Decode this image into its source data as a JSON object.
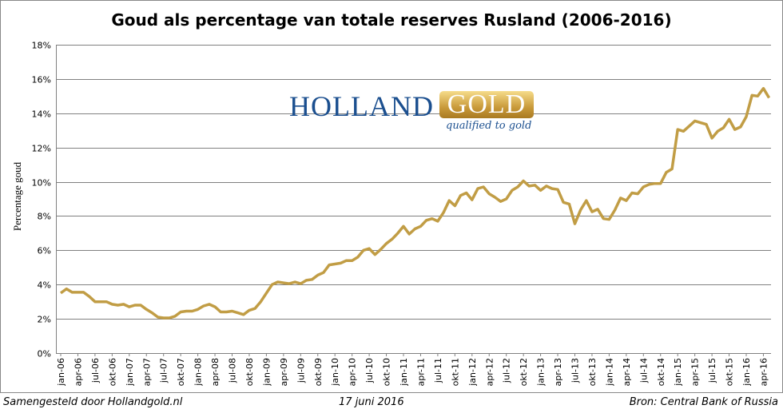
{
  "footer": {
    "left": "Samengesteld door Hollandgold.nl",
    "center": "17 juni 2016",
    "right": "Bron: Central Bank of Russia"
  },
  "logo": {
    "word1": "HOLLAND",
    "word2": "GOLD",
    "tagline": "qualified to gold"
  },
  "colors": {
    "line": "#c19d45",
    "grid": "#808080",
    "logo_blue": "#1b4f8f"
  },
  "chart_data": {
    "type": "line",
    "title": "Goud als percentage van totale reserves Rusland (2006-2016)",
    "xlabel": "",
    "ylabel": "Percentage goud",
    "ylim": [
      0,
      18
    ],
    "yticks": [
      0,
      2,
      4,
      6,
      8,
      10,
      12,
      14,
      16,
      18
    ],
    "ytick_labels": [
      "0%",
      "2%",
      "4%",
      "6%",
      "8%",
      "10%",
      "12%",
      "14%",
      "16%",
      "18%"
    ],
    "xtick_labels": [
      "jan-06",
      "apr-06",
      "jul-06",
      "okt-06",
      "jan-07",
      "apr-07",
      "jul-07",
      "okt-07",
      "jan-08",
      "apr-08",
      "jul-08",
      "okt-08",
      "jan-09",
      "apr-09",
      "jul-09",
      "okt-09",
      "jan-10",
      "apr-10",
      "jul-10",
      "okt-10",
      "jan-11",
      "apr-11",
      "jul-11",
      "okt-11",
      "jan-12",
      "apr-12",
      "jul-12",
      "okt-12",
      "jan-13",
      "apr-13",
      "jul-13",
      "okt-13",
      "jan-14",
      "apr-14",
      "jul-14",
      "okt-14",
      "jan-15",
      "apr-15",
      "jul-15",
      "okt-15",
      "jan-16",
      "apr-16"
    ],
    "grid": true,
    "series": [
      {
        "name": "Percentage goud",
        "start": "jan-06",
        "frequency": "monthly",
        "values": [
          3.5,
          3.75,
          3.55,
          3.55,
          3.55,
          3.3,
          3.0,
          3.0,
          3.0,
          2.85,
          2.8,
          2.85,
          2.7,
          2.8,
          2.8,
          2.55,
          2.35,
          2.1,
          2.05,
          2.05,
          2.15,
          2.4,
          2.45,
          2.45,
          2.55,
          2.75,
          2.85,
          2.7,
          2.4,
          2.4,
          2.45,
          2.35,
          2.25,
          2.5,
          2.6,
          3.0,
          3.5,
          4.0,
          4.15,
          4.1,
          4.05,
          4.15,
          4.05,
          4.25,
          4.3,
          4.55,
          4.7,
          5.15,
          5.2,
          5.25,
          5.4,
          5.4,
          5.6,
          6.0,
          6.1,
          5.75,
          6.05,
          6.4,
          6.65,
          7.0,
          7.4,
          6.95,
          7.25,
          7.4,
          7.75,
          7.85,
          7.7,
          8.2,
          8.9,
          8.6,
          9.2,
          9.35,
          8.95,
          9.6,
          9.7,
          9.3,
          9.1,
          8.85,
          9.0,
          9.5,
          9.7,
          10.05,
          9.75,
          9.8,
          9.5,
          9.75,
          9.6,
          9.55,
          8.8,
          8.7,
          7.55,
          8.35,
          8.9,
          8.25,
          8.4,
          7.85,
          7.8,
          8.35,
          9.05,
          8.9,
          9.35,
          9.3,
          9.7,
          9.85,
          9.9,
          9.9,
          10.55,
          10.75,
          13.05,
          12.95,
          13.25,
          13.55,
          13.45,
          13.35,
          12.55,
          12.95,
          13.15,
          13.65,
          13.05,
          13.2,
          13.8,
          15.05,
          15.0,
          15.45,
          14.9
        ]
      }
    ]
  }
}
